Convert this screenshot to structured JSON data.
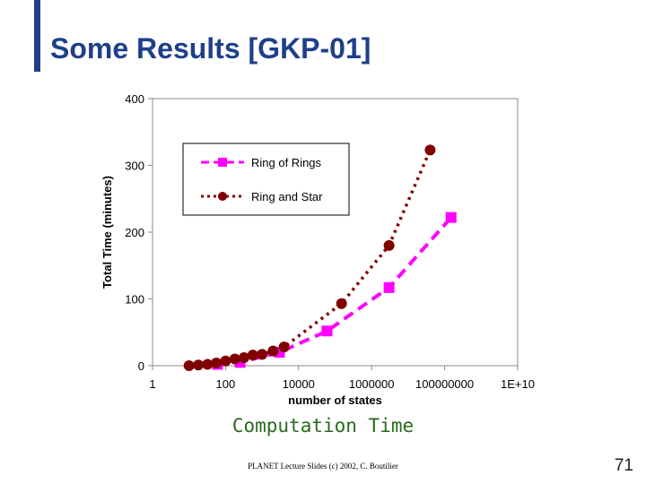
{
  "slide": {
    "title": "Some Results [GKP-01]",
    "caption": "Computation Time",
    "footer": "PLANET Lecture Slides (c) 2002, C. Boutilier",
    "page_number": "71",
    "accent_color": "#1e3f8a",
    "caption_color": "#2a6a1e"
  },
  "chart_data": {
    "type": "line",
    "title": "",
    "xlabel": "number of states",
    "ylabel": "Total Time (minutes)",
    "x_scale": "log",
    "xlim": [
      1,
      10000000000
    ],
    "ylim": [
      0,
      400
    ],
    "x_ticks": [
      {
        "value": 1,
        "label": "1"
      },
      {
        "value": 100,
        "label": "100"
      },
      {
        "value": 10000,
        "label": "10000"
      },
      {
        "value": 1000000,
        "label": "1000000"
      },
      {
        "value": 100000000,
        "label": "100000000"
      },
      {
        "value": 10000000000,
        "label": "1E+10"
      }
    ],
    "y_ticks": [
      {
        "value": 0,
        "label": "0"
      },
      {
        "value": 100,
        "label": "100"
      },
      {
        "value": 200,
        "label": "200"
      },
      {
        "value": 300,
        "label": "300"
      },
      {
        "value": 400,
        "label": "400"
      }
    ],
    "grid": false,
    "legend_position": "top-left inside plot",
    "series": [
      {
        "name": "Ring of Rings",
        "color": "#ff00ff",
        "marker": "square",
        "line_style": "dashed",
        "points": [
          {
            "x": 60,
            "y": 2
          },
          {
            "x": 250,
            "y": 5
          },
          {
            "x": 3000,
            "y": 20
          },
          {
            "x": 60000,
            "y": 52
          },
          {
            "x": 3000000,
            "y": 117
          },
          {
            "x": 150000000,
            "y": 222
          }
        ]
      },
      {
        "name": "Ring and Star",
        "color": "#800000",
        "marker": "circle",
        "line_style": "dotted",
        "points": [
          {
            "x": 10,
            "y": 0
          },
          {
            "x": 18,
            "y": 1
          },
          {
            "x": 32,
            "y": 2
          },
          {
            "x": 56,
            "y": 4
          },
          {
            "x": 100,
            "y": 7
          },
          {
            "x": 180,
            "y": 10
          },
          {
            "x": 320,
            "y": 12
          },
          {
            "x": 560,
            "y": 16
          },
          {
            "x": 1000,
            "y": 17
          },
          {
            "x": 2000,
            "y": 22
          },
          {
            "x": 4000,
            "y": 28
          },
          {
            "x": 150000,
            "y": 93
          },
          {
            "x": 3000000,
            "y": 180
          },
          {
            "x": 40000000,
            "y": 323
          }
        ]
      }
    ]
  }
}
